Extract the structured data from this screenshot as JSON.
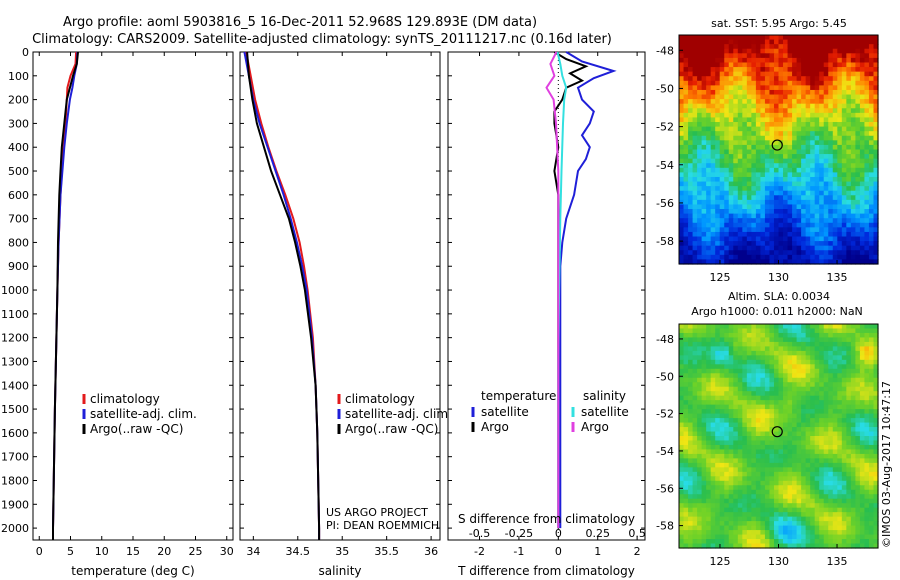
{
  "header": {
    "line1": "Argo profile: aoml 5903816_5 16-Dec-2011 52.968S 129.893E (DM data)",
    "line2": "Climatology: CARS2009. Satellite-adjusted climatology: synTS_20111217.nc (0.16d later)"
  },
  "colors": {
    "climatology": "#e31a1c",
    "satellite": "#1f1fd8",
    "argo": "#000000",
    "sat_salinity": "#33e0e0",
    "argo_salinity": "#e040e0"
  },
  "chart_data": [
    {
      "type": "line",
      "panel": "temperature",
      "xlabel": "temperature (deg C)",
      "xlim": [
        -1,
        31
      ],
      "xticks": [
        0,
        5,
        10,
        15,
        20,
        25,
        30
      ],
      "ylim": [
        2050,
        0
      ],
      "yticks": [
        0,
        100,
        200,
        300,
        400,
        500,
        600,
        700,
        800,
        900,
        1000,
        1100,
        1200,
        1300,
        1400,
        1500,
        1600,
        1700,
        1800,
        1900,
        2000
      ],
      "legend": [
        "climatology",
        "satellite-adj. clim.",
        "Argo(..raw -QC)"
      ],
      "series": [
        {
          "name": "climatology",
          "color": "#e31a1c",
          "depth": [
            0,
            50,
            100,
            150,
            200,
            300,
            400,
            500,
            600,
            800,
            1000,
            1500,
            2000,
            2050
          ],
          "values": [
            5.9,
            5.8,
            5.0,
            4.5,
            4.4,
            4.2,
            3.9,
            3.6,
            3.4,
            3.1,
            2.9,
            2.5,
            2.2,
            2.2
          ]
        },
        {
          "name": "satellite-adj. clim.",
          "color": "#1f1fd8",
          "depth": [
            0,
            50,
            100,
            150,
            200,
            300,
            400,
            500,
            600,
            800,
            1000,
            1500,
            2000,
            2050
          ],
          "values": [
            6.1,
            6.0,
            5.6,
            5.3,
            4.9,
            4.4,
            4.0,
            3.7,
            3.4,
            3.1,
            2.9,
            2.5,
            2.2,
            2.2
          ]
        },
        {
          "name": "Argo(..raw -QC)",
          "color": "#000000",
          "depth": [
            0,
            50,
            100,
            150,
            200,
            300,
            400,
            500,
            600,
            800,
            1000,
            1500,
            2000,
            2050
          ],
          "values": [
            6.2,
            6.0,
            5.4,
            4.9,
            4.4,
            4.0,
            3.6,
            3.4,
            3.2,
            3.0,
            2.9,
            2.5,
            2.2,
            2.2
          ]
        }
      ]
    },
    {
      "type": "line",
      "panel": "salinity",
      "xlabel": "salinity",
      "xlim": [
        33.85,
        36.1
      ],
      "xticks": [
        34,
        34.5,
        35,
        35.5,
        36
      ],
      "ylim": [
        2050,
        0
      ],
      "legend": [
        "climatology",
        "satellite-adj. clim.",
        "Argo(..raw -QC)"
      ],
      "series": [
        {
          "name": "climatology",
          "color": "#e31a1c",
          "depth": [
            0,
            100,
            200,
            300,
            400,
            500,
            600,
            700,
            800,
            900,
            1000,
            1200,
            1400,
            1600,
            1800,
            2000,
            2050
          ],
          "values": [
            33.92,
            33.97,
            34.02,
            34.09,
            34.17,
            34.26,
            34.36,
            34.45,
            34.52,
            34.57,
            34.61,
            34.67,
            34.7,
            34.72,
            34.73,
            34.74,
            34.74
          ]
        },
        {
          "name": "satellite-adj. clim.",
          "color": "#1f1fd8",
          "depth": [
            0,
            100,
            200,
            300,
            400,
            500,
            600,
            700,
            800,
            900,
            1000,
            1200,
            1400,
            1600,
            1800,
            2000,
            2050
          ],
          "values": [
            33.9,
            33.95,
            34.0,
            34.07,
            34.16,
            34.25,
            34.34,
            34.42,
            34.49,
            34.55,
            34.6,
            34.66,
            34.7,
            34.72,
            34.73,
            34.74,
            34.74
          ]
        },
        {
          "name": "Argo(..raw -QC)",
          "color": "#000000",
          "depth": [
            0,
            100,
            200,
            300,
            400,
            500,
            600,
            700,
            800,
            900,
            1000,
            1200,
            1400,
            1600,
            1800,
            2000,
            2050
          ],
          "values": [
            33.93,
            33.95,
            33.99,
            34.04,
            34.12,
            34.2,
            34.3,
            34.4,
            34.47,
            34.53,
            34.58,
            34.65,
            34.7,
            34.72,
            34.73,
            34.74,
            34.74
          ]
        }
      ]
    },
    {
      "type": "line",
      "panel": "difference",
      "xlabel": "T difference from climatology",
      "xlabel_top": "S difference from climatology",
      "xlim": [
        -2.8,
        2.2
      ],
      "xticks": [
        -2,
        -1,
        0,
        1,
        2
      ],
      "sticks_pos": [
        -2,
        -1,
        0,
        1,
        2
      ],
      "sticks": [
        "-0.5",
        "-0.25",
        "0",
        "0.25",
        "0.5"
      ],
      "ylim": [
        2050,
        0
      ],
      "legend_headers": [
        "temperature",
        "salinity"
      ],
      "legend": [
        "satellite",
        "Argo",
        "satellite",
        "Argo"
      ],
      "series": [
        {
          "name": "satellite",
          "group": "temperature",
          "color": "#1f1fd8",
          "depth": [
            0,
            40,
            80,
            110,
            150,
            200,
            250,
            300,
            350,
            400,
            450,
            500,
            600,
            700,
            800,
            900,
            1000,
            1200,
            1500,
            2000
          ],
          "values": [
            0.2,
            0.6,
            1.4,
            0.9,
            0.5,
            0.6,
            0.9,
            0.8,
            0.6,
            0.8,
            0.7,
            0.5,
            0.4,
            0.2,
            0.1,
            0.05,
            0.05,
            0.05,
            0.05,
            0.05
          ]
        },
        {
          "name": "Argo",
          "group": "temperature",
          "color": "#000000",
          "depth": [
            0,
            30,
            60,
            90,
            120,
            150,
            200,
            250,
            300,
            400,
            500,
            600,
            700,
            800,
            900,
            1000,
            1200,
            1500,
            2000
          ],
          "values": [
            -0.1,
            0.2,
            0.7,
            0.3,
            0.6,
            0.2,
            0.1,
            -0.1,
            -0.1,
            0.0,
            -0.1,
            0.0,
            0.0,
            0.0,
            0.0,
            0.0,
            0.0,
            0.0,
            0.0
          ]
        },
        {
          "name": "satellite",
          "group": "salinity",
          "color": "#33e0e0",
          "depth": [
            0,
            50,
            100,
            150,
            200,
            300,
            500,
            700,
            1000,
            1300,
            1500,
            2000
          ],
          "values": [
            -0.02,
            0.05,
            0.1,
            0.2,
            0.15,
            0.12,
            0.08,
            0.05,
            0.02,
            0.0,
            0.0,
            0.0
          ]
        },
        {
          "name": "Argo",
          "group": "salinity",
          "color": "#e040e0",
          "depth": [
            0,
            50,
            100,
            150,
            200,
            300,
            500,
            700,
            1000,
            1300,
            1500,
            2000
          ],
          "values": [
            -0.05,
            -0.2,
            -0.1,
            -0.3,
            -0.12,
            -0.06,
            0.0,
            0.0,
            0.0,
            0.0,
            0.0,
            0.0
          ]
        }
      ]
    },
    {
      "type": "heatmap",
      "panel": "sst_map",
      "title": "sat. SST: 5.95  Argo: 5.45",
      "xlim": [
        121.5,
        138.5
      ],
      "xticks": [
        125,
        130,
        135
      ],
      "ylim": [
        -59.2,
        -47.2
      ],
      "yticks": [
        -48,
        -50,
        -52,
        -54,
        -56,
        -58
      ],
      "marker": {
        "lon": 129.893,
        "lat": -52.968
      }
    },
    {
      "type": "heatmap",
      "panel": "sla_map",
      "title": "Altim. SLA: 0.0034",
      "subtitle": "Argo h1000: 0.011 h2000: NaN",
      "xlim": [
        121.5,
        138.5
      ],
      "xticks": [
        125,
        130,
        135
      ],
      "ylim": [
        -59.2,
        -47.2
      ],
      "yticks": [
        -48,
        -50,
        -52,
        -54,
        -56,
        -58
      ],
      "marker": {
        "lon": 129.893,
        "lat": -52.968
      }
    }
  ],
  "annotations": {
    "project": "US ARGO PROJECT",
    "pi": "PI: DEAN ROEMMICH",
    "credit": "©IMOS 03-Aug-2017 10:47:17"
  }
}
